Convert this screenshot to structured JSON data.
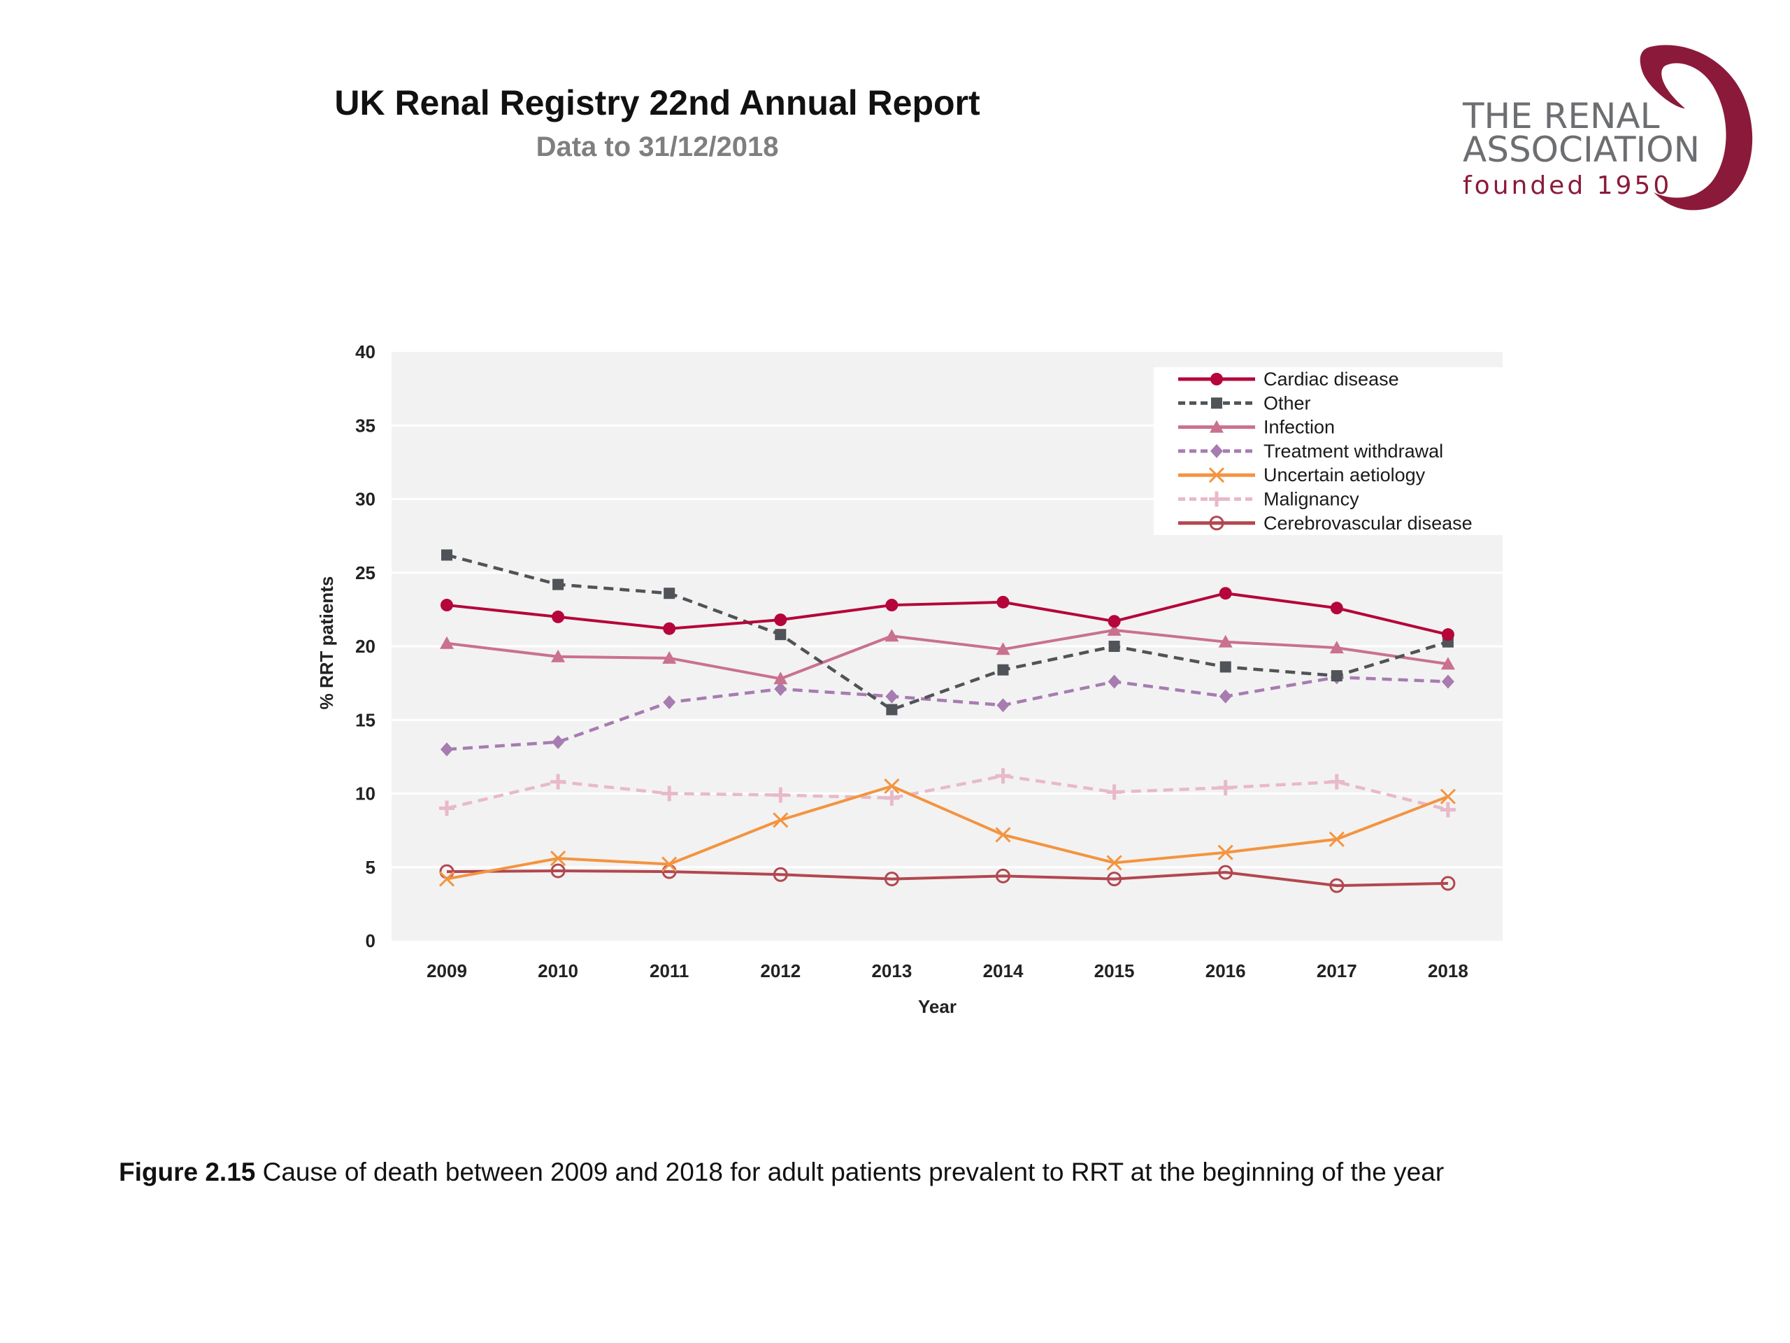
{
  "header": {
    "title": "UK Renal Registry 22nd Annual Report",
    "subtitle": "Data to 31/12/2018"
  },
  "logo": {
    "line1": "THE RENAL",
    "line2": "ASSOCIATION",
    "line3": "founded 1950",
    "brand_color": "#8b1a3a",
    "text_color": "#6d6e71"
  },
  "caption": {
    "label": "Figure 2.15",
    "text": " Cause of death between 2009 and 2018 for adult patients prevalent to RRT at the beginning of the year"
  },
  "chart_data": {
    "type": "line",
    "title": "",
    "xlabel": "Year",
    "ylabel": "% RRT patients",
    "x": [
      "2009",
      "2010",
      "2011",
      "2012",
      "2013",
      "2014",
      "2015",
      "2016",
      "2017",
      "2018"
    ],
    "ylim": [
      0,
      40
    ],
    "yticks": [
      0,
      5,
      10,
      15,
      20,
      25,
      30,
      35,
      40
    ],
    "grid": true,
    "legend_position": "top-right",
    "plot_background": "#f2f2f2",
    "series": [
      {
        "name": "Cardiac disease",
        "color": "#b5053a",
        "dash": "solid",
        "marker": "circle",
        "values": [
          22.8,
          22.0,
          21.2,
          21.8,
          22.8,
          23.0,
          21.7,
          23.6,
          22.6,
          20.8
        ]
      },
      {
        "name": "Other",
        "color": "#505357",
        "dash": "dashed",
        "marker": "square",
        "values": [
          26.2,
          24.2,
          23.6,
          20.8,
          15.7,
          18.4,
          20.0,
          18.6,
          18.0,
          20.3
        ]
      },
      {
        "name": "Infection",
        "color": "#c9718f",
        "dash": "solid",
        "marker": "triangle",
        "values": [
          20.2,
          19.3,
          19.2,
          17.8,
          20.7,
          19.8,
          21.1,
          20.3,
          19.9,
          18.8
        ]
      },
      {
        "name": "Treatment withdrawal",
        "color": "#a77cb0",
        "dash": "dashed",
        "marker": "diamond",
        "values": [
          13.0,
          13.5,
          16.2,
          17.1,
          16.6,
          16.0,
          17.6,
          16.6,
          17.9,
          17.6
        ]
      },
      {
        "name": "Uncertain aetiology",
        "color": "#f39440",
        "dash": "solid",
        "marker": "x",
        "values": [
          4.2,
          5.6,
          5.2,
          8.2,
          10.5,
          7.2,
          5.3,
          6.0,
          6.9,
          9.8
        ]
      },
      {
        "name": "Malignancy",
        "color": "#e8b9c9",
        "dash": "dashed",
        "marker": "plus",
        "values": [
          9.0,
          10.8,
          10.0,
          9.9,
          9.7,
          11.2,
          10.1,
          10.4,
          10.8,
          8.9
        ]
      },
      {
        "name": "Cerebrovascular disease",
        "color": "#b2474f",
        "dash": "solid",
        "marker": "open-circle",
        "values": [
          4.7,
          4.75,
          4.7,
          4.5,
          4.2,
          4.4,
          4.2,
          4.65,
          3.75,
          3.9
        ]
      }
    ]
  }
}
